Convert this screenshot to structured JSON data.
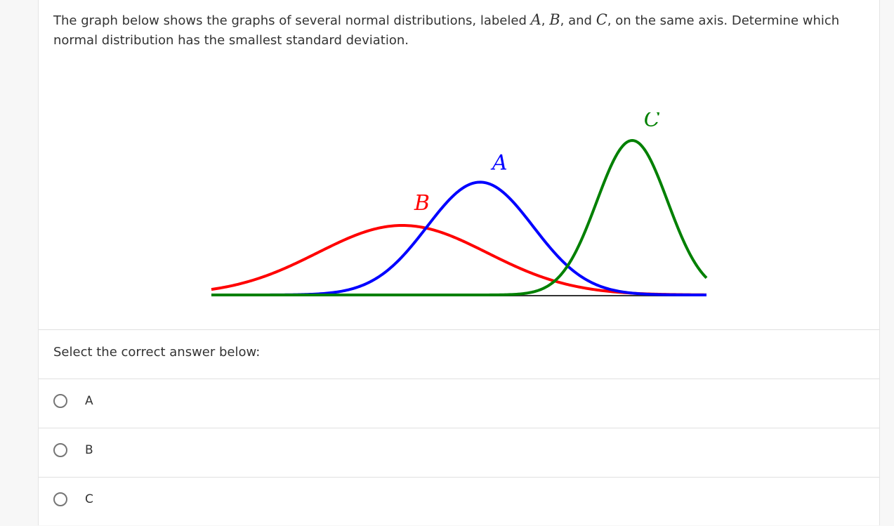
{
  "question": {
    "part1": "The graph below shows the graphs of several normal distributions, labeled ",
    "var_a": "A",
    "sep1": ", ",
    "var_b": "B",
    "sep2": ", and ",
    "var_c": "C",
    "part2": ", on the same axis. Determine which normal distribution has the smallest standard deviation."
  },
  "chart_data": {
    "type": "line",
    "title": "",
    "xlabel": "",
    "ylabel": "",
    "xlim": [
      0,
      14
    ],
    "ylim": [
      0,
      1
    ],
    "grid": false,
    "series": [
      {
        "name": "B",
        "color": "#ff0000",
        "mean": 5.4,
        "sd": 2.4,
        "peak": 0.45
      },
      {
        "name": "A",
        "color": "#0000ff",
        "mean": 7.6,
        "sd": 1.5,
        "peak": 0.73
      },
      {
        "name": "C",
        "color": "#008000",
        "mean": 11.9,
        "sd": 1.0,
        "peak": 1.0
      }
    ],
    "axis_color": "#333333"
  },
  "prompt": "Select the correct answer below:",
  "options": [
    {
      "label": "A"
    },
    {
      "label": "B"
    },
    {
      "label": "C"
    }
  ]
}
